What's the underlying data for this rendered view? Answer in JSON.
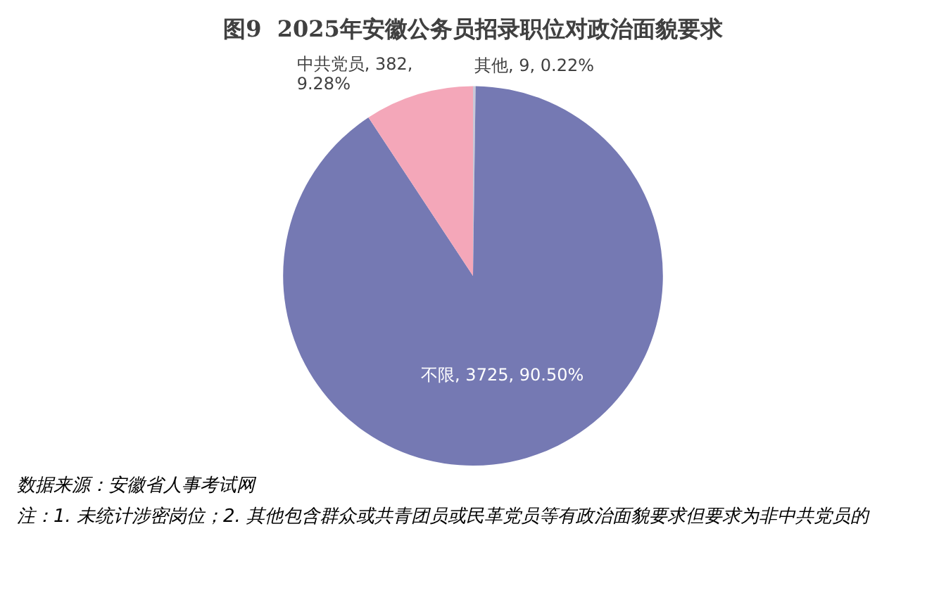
{
  "chart_data": {
    "type": "pie",
    "title": "图9  2025年安徽公务员招录职位对政治面貌要求",
    "categories": [
      "其他",
      "不限",
      "中共党员"
    ],
    "values": [
      9,
      3725,
      382
    ],
    "colors": [
      "#c8c8d8",
      "#7579b3",
      "#f4a7b9"
    ],
    "value_labels": [
      "9, 0.22%",
      "3725, 90.50%",
      "382, 9.28%"
    ],
    "legend": false,
    "annotations": [
      "数据来源：安徽省人事考试网",
      "注：1. 未统计涉密岗位；2. 其他包含群众或共青团员或民革党员等有政治面貌要求但要求为非中共党员的"
    ]
  }
}
